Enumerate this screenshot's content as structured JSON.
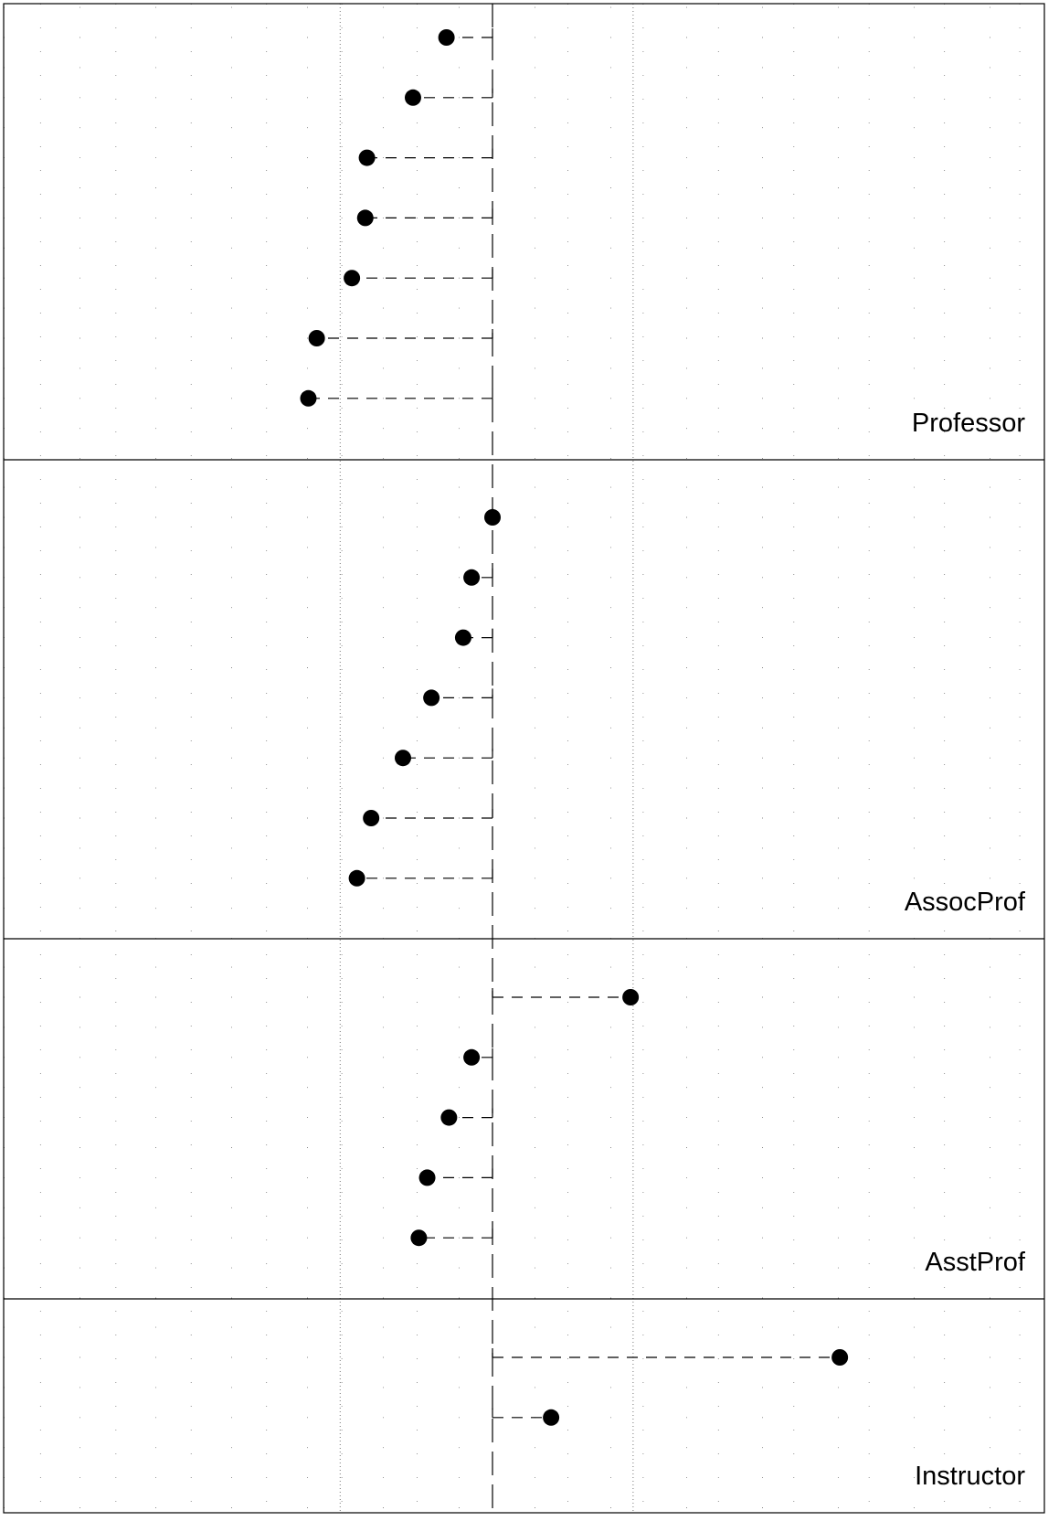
{
  "chart_data": {
    "type": "dotplot",
    "reference_value": 0,
    "xlim": [
      -10,
      10
    ],
    "grid": "dotted",
    "panels": [
      {
        "label": "Professor",
        "values": [
          -0.55,
          -0.95,
          -1.5,
          -1.52,
          -1.68,
          -2.1,
          -2.2
        ]
      },
      {
        "label": "AssocProf",
        "values": [
          0.0,
          -0.25,
          -0.35,
          -0.73,
          -1.07,
          -1.45,
          -1.62
        ]
      },
      {
        "label": "AsstProf",
        "values": [
          1.65,
          -0.25,
          -0.52,
          -0.78,
          -0.88
        ]
      },
      {
        "label": "Instructor",
        "values": [
          4.15,
          0.7
        ]
      }
    ]
  },
  "colors": {
    "frame": "#000000",
    "points": "#000000",
    "grid": "#555555",
    "background": "#ffffff"
  }
}
